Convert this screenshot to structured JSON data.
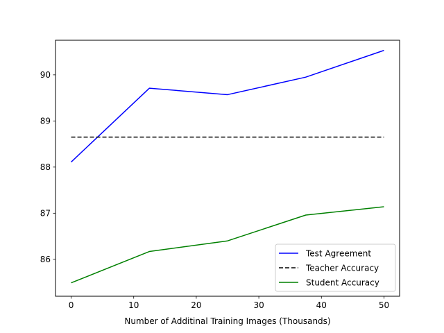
{
  "chart_data": {
    "type": "line",
    "title": "",
    "xlabel": "Number of Additinal Training Images (Thousands)",
    "ylabel": "",
    "xlim": [
      -2.5,
      52.5
    ],
    "ylim": [
      85.2,
      90.75
    ],
    "xticks": [
      0,
      10,
      20,
      30,
      40,
      50
    ],
    "yticks": [
      86,
      87,
      88,
      89,
      90
    ],
    "grid": false,
    "legend_position": "lower-right",
    "series": [
      {
        "name": "Test Agreement",
        "color": "#0000ff",
        "style": "solid",
        "x": [
          0,
          12.5,
          25,
          37.5,
          50
        ],
        "y": [
          88.11,
          89.71,
          89.57,
          89.95,
          90.53
        ]
      },
      {
        "name": "Teacher Accuracy",
        "color": "#000000",
        "style": "dashed",
        "x": [
          0,
          50
        ],
        "y": [
          88.65,
          88.65
        ]
      },
      {
        "name": "Student Accuracy",
        "color": "#008000",
        "style": "solid",
        "x": [
          0,
          12.5,
          25,
          37.5,
          50
        ],
        "y": [
          85.49,
          86.17,
          86.4,
          86.96,
          87.14
        ]
      }
    ]
  }
}
